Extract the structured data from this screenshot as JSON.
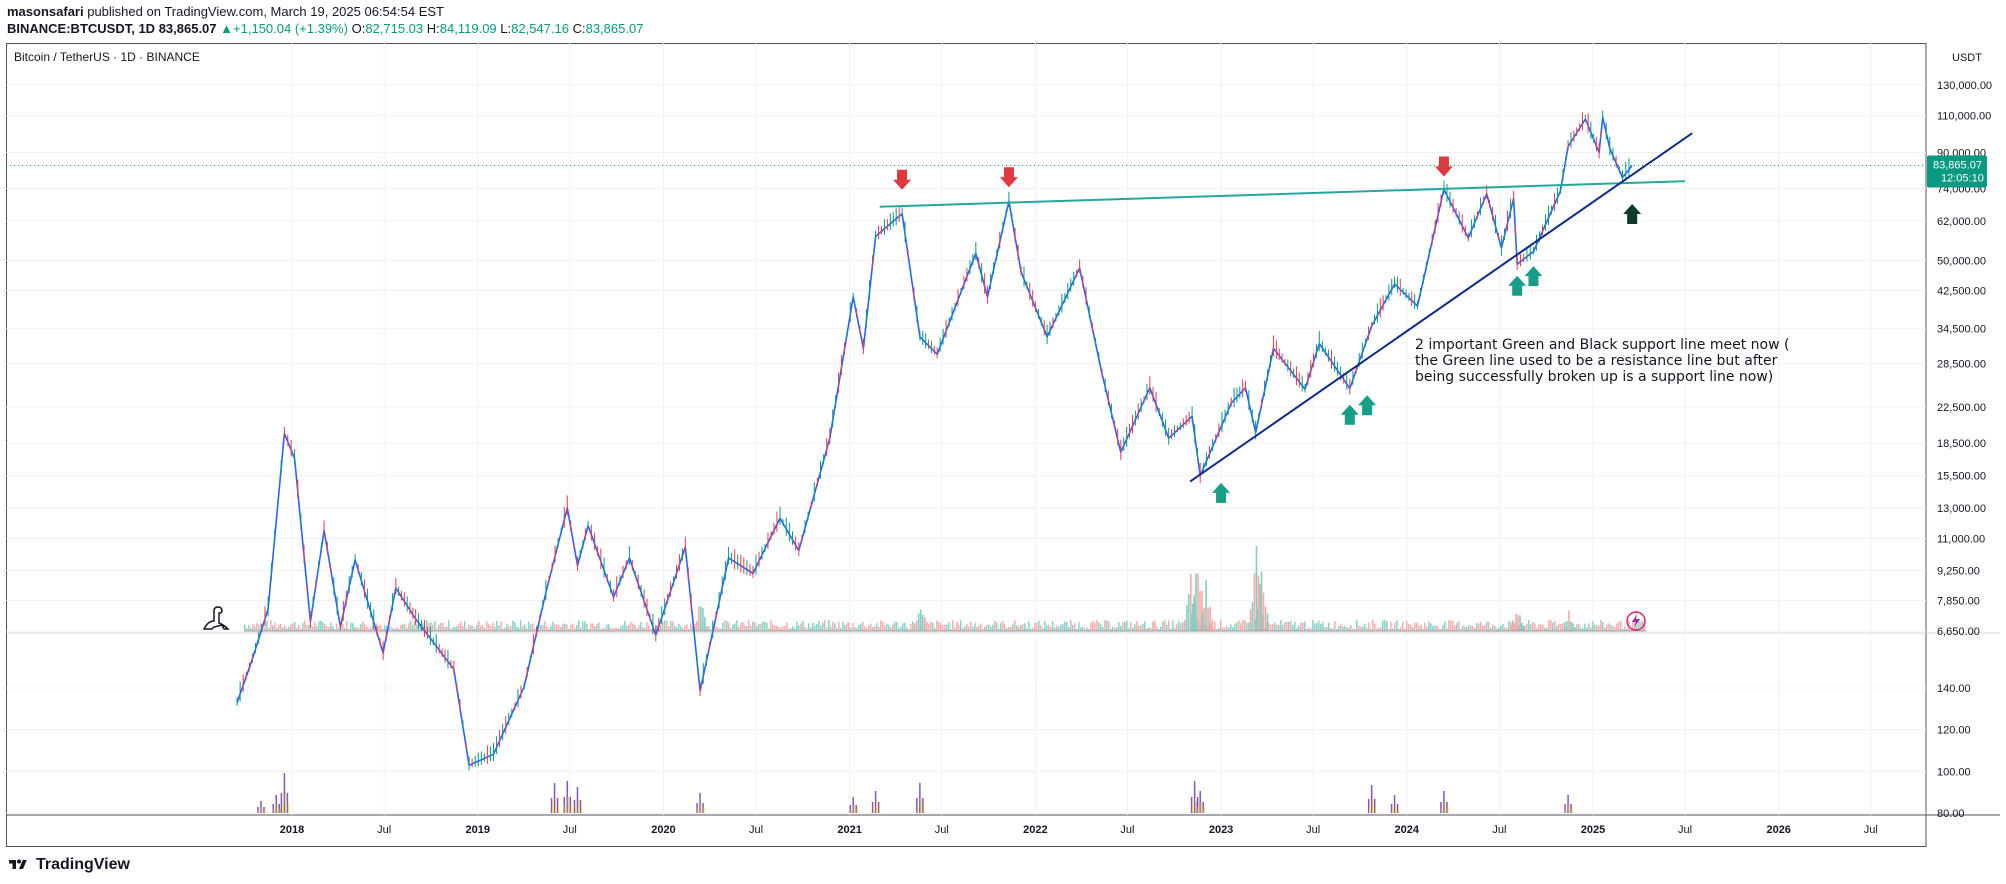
{
  "header": {
    "publisher": "masonsafari",
    "published_text": "published on TradingView.com, March 19, 2025 06:54:54 EST",
    "symbol": "BINANCE:BTCUSDT, 1D",
    "price": "83,865.07",
    "change_arrow": "▲",
    "change": "+1,150.04 (+1.39%)",
    "o_label": "O:",
    "o_value": "82,715.03",
    "h_label": "H:",
    "h_value": "84,119.09",
    "l_label": "L:",
    "l_value": "82,547.16",
    "c_label": "C:",
    "c_value": "83,865.07"
  },
  "footer": {
    "brand": "TradingView"
  },
  "colors": {
    "up": "#089981",
    "down": "#f23645",
    "support_line_green": "#26a69a",
    "support_line_blue": "#0d2a8c",
    "arrow_red": "#e0383e",
    "arrow_green": "#179e86",
    "arrow_black": "#0b3a2e",
    "indicator_purple": "#7e57c2",
    "indicator_yellow": "#fdd835",
    "grid": "#eef1f5"
  },
  "chart_data": {
    "type": "line",
    "title": "Bitcoin / TetherUS · 1D · BINANCE",
    "currency": "USDT",
    "last_price_label": "83,865.07",
    "countdown_label": "12:05:10",
    "x_ticks": [
      "2018",
      "Jul",
      "2019",
      "Jul",
      "2020",
      "Jul",
      "2021",
      "Jul",
      "2022",
      "Jul",
      "2023",
      "Jul",
      "2024",
      "Jul",
      "2025",
      "Jul",
      "2026",
      "Jul"
    ],
    "y_ticks": [
      "130,000.00",
      "110,000.00",
      "90,000.00",
      "74,000.00",
      "62,000.00",
      "50,000.00",
      "42,500.00",
      "34,500.00",
      "28,500.00",
      "22,500.00",
      "18,500.00",
      "15,500.00",
      "13,000.00",
      "11,000.00",
      "9,250.00",
      "7,850.00",
      "6,650.00"
    ],
    "indicator_y_ticks": [
      "140.00",
      "120.00",
      "100.00",
      "80.00"
    ],
    "series": [
      {
        "values": [
          [
            "2017-09-15",
            4500
          ],
          [
            "2017-10-15",
            5700
          ],
          [
            "2017-11-15",
            7500
          ],
          [
            "2017-12-17",
            19500
          ],
          [
            "2018-01-06",
            17000
          ],
          [
            "2018-02-06",
            7000
          ],
          [
            "2018-03-05",
            11500
          ],
          [
            "2018-04-06",
            6800
          ],
          [
            "2018-05-05",
            9800
          ],
          [
            "2018-06-29",
            5900
          ],
          [
            "2018-07-24",
            8400
          ],
          [
            "2018-09-01",
            7100
          ],
          [
            "2018-11-15",
            5400
          ],
          [
            "2018-12-15",
            3200
          ],
          [
            "2019-02-01",
            3400
          ],
          [
            "2019-04-02",
            4900
          ],
          [
            "2019-05-15",
            8200
          ],
          [
            "2019-06-26",
            13000
          ],
          [
            "2019-07-16",
            9500
          ],
          [
            "2019-08-06",
            11800
          ],
          [
            "2019-09-25",
            8000
          ],
          [
            "2019-10-26",
            9900
          ],
          [
            "2019-12-17",
            6500
          ],
          [
            "2020-02-13",
            10500
          ],
          [
            "2020-03-13",
            4800
          ],
          [
            "2020-05-08",
            9900
          ],
          [
            "2020-06-25",
            9100
          ],
          [
            "2020-08-17",
            12300
          ],
          [
            "2020-09-23",
            10300
          ],
          [
            "2020-11-23",
            19000
          ],
          [
            "2021-01-08",
            41000
          ],
          [
            "2021-01-28",
            31000
          ],
          [
            "2021-02-21",
            57000
          ],
          [
            "2021-04-14",
            64500
          ],
          [
            "2021-05-19",
            33000
          ],
          [
            "2021-06-22",
            30000
          ],
          [
            "2021-09-06",
            52000
          ],
          [
            "2021-09-29",
            41000
          ],
          [
            "2021-11-10",
            69000
          ],
          [
            "2021-12-04",
            47000
          ],
          [
            "2022-01-24",
            33000
          ],
          [
            "2022-03-29",
            48000
          ],
          [
            "2022-05-12",
            27000
          ],
          [
            "2022-06-18",
            17600
          ],
          [
            "2022-08-14",
            25000
          ],
          [
            "2022-09-20",
            19000
          ],
          [
            "2022-11-05",
            21400
          ],
          [
            "2022-11-21",
            15500
          ],
          [
            "2023-01-21",
            23000
          ],
          [
            "2023-02-18",
            25000
          ],
          [
            "2023-03-10",
            19600
          ],
          [
            "2023-04-14",
            31000
          ],
          [
            "2023-06-15",
            24800
          ],
          [
            "2023-07-13",
            31800
          ],
          [
            "2023-09-11",
            24900
          ],
          [
            "2023-10-24",
            35000
          ],
          [
            "2023-12-08",
            44000
          ],
          [
            "2024-01-22",
            39000
          ],
          [
            "2024-03-14",
            73700
          ],
          [
            "2024-05-01",
            56500
          ],
          [
            "2024-06-06",
            71900
          ],
          [
            "2024-07-05",
            53500
          ],
          [
            "2024-07-29",
            70000
          ],
          [
            "2024-08-05",
            49000
          ],
          [
            "2024-09-06",
            52500
          ],
          [
            "2024-10-29",
            73000
          ],
          [
            "2024-11-13",
            93000
          ],
          [
            "2024-12-17",
            108000
          ],
          [
            "2025-01-13",
            90000
          ],
          [
            "2025-01-20",
            109000
          ],
          [
            "2025-02-03",
            92000
          ],
          [
            "2025-02-28",
            78500
          ],
          [
            "2025-03-19",
            83865
          ]
        ]
      }
    ],
    "annotation": "2 important Green and Black  support line meet now ( the Green line used to be a resistance line but after being successfully broken up is a support line now)",
    "trend_lines": [
      {
        "name": "green",
        "from": [
          "2021-03-01",
          67000
        ],
        "to": [
          "2025-07-01",
          77000
        ]
      },
      {
        "name": "blue",
        "from": [
          "2022-11-01",
          15000
        ],
        "to": [
          "2025-07-15",
          100000
        ]
      }
    ],
    "markers": [
      {
        "type": "down",
        "color": "red",
        "x": "2021-04-14",
        "y": 73500
      },
      {
        "type": "down",
        "color": "red",
        "x": "2021-11-10",
        "y": 74500
      },
      {
        "type": "down",
        "color": "red",
        "x": "2024-03-14",
        "y": 79000
      },
      {
        "type": "up",
        "color": "green",
        "x": "2023-01-01",
        "y": 14900
      },
      {
        "type": "up",
        "color": "green",
        "x": "2023-09-11",
        "y": 22800
      },
      {
        "type": "up",
        "color": "green",
        "x": "2023-10-15",
        "y": 24000
      },
      {
        "type": "up",
        "color": "green",
        "x": "2024-08-05",
        "y": 46000
      },
      {
        "type": "up",
        "color": "green",
        "x": "2024-09-06",
        "y": 48500
      },
      {
        "type": "up",
        "color": "black",
        "x": "2025-03-19",
        "y": 68000
      }
    ],
    "volume_spikes": [
      [
        "2022-11-01",
        55
      ],
      [
        "2022-11-15",
        78
      ],
      [
        "2022-12-01",
        50
      ],
      [
        "2023-03-10",
        88
      ],
      [
        "2023-03-20",
        70
      ],
      [
        "2021-05-19",
        28
      ],
      [
        "2020-03-13",
        32
      ],
      [
        "2024-08-05",
        22
      ],
      [
        "2024-11-13",
        20
      ]
    ],
    "indicator_spikes": [
      [
        "2017-11-01",
        12
      ],
      [
        "2017-12-01",
        18
      ],
      [
        "2017-12-17",
        40
      ],
      [
        "2019-06-01",
        30
      ],
      [
        "2019-06-26",
        32
      ],
      [
        "2019-07-16",
        26
      ],
      [
        "2020-03-13",
        20
      ],
      [
        "2021-01-08",
        16
      ],
      [
        "2021-02-21",
        22
      ],
      [
        "2021-05-19",
        30
      ],
      [
        "2022-11-10",
        32
      ],
      [
        "2022-11-21",
        22
      ],
      [
        "2023-10-24",
        28
      ],
      [
        "2023-12-08",
        18
      ],
      [
        "2024-03-14",
        22
      ],
      [
        "2024-11-13",
        18
      ]
    ],
    "grid": true,
    "legend": "none"
  }
}
